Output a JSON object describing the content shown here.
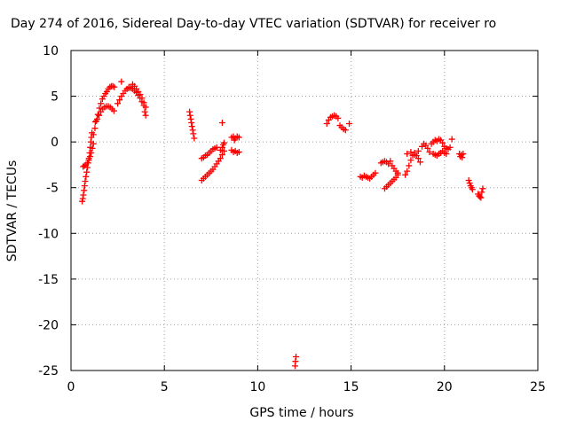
{
  "chart_data": {
    "type": "scatter",
    "title": "Day 274 of 2016, Sidereal Day-to-day VTEC variation (SDTVAR) for receiver ro",
    "xlabel": "GPS time / hours",
    "ylabel": "SDTVAR / TECUs",
    "xlim": [
      0,
      25
    ],
    "ylim": [
      -25,
      10
    ],
    "xticks": [
      0,
      5,
      10,
      15,
      20,
      25
    ],
    "yticks": [
      10,
      5,
      0,
      -5,
      -10,
      -15,
      -20,
      -25
    ],
    "grid": true,
    "marker": "+",
    "color": "#ff0000",
    "series": [
      {
        "name": "SDTVAR",
        "points": [
          [
            0.6,
            -6.5
          ],
          [
            0.63,
            -6.2
          ],
          [
            0.66,
            -5.8
          ],
          [
            0.7,
            -5.3
          ],
          [
            0.73,
            -4.8
          ],
          [
            0.76,
            -4.3
          ],
          [
            0.8,
            -3.8
          ],
          [
            0.84,
            -3.3
          ],
          [
            0.88,
            -2.8
          ],
          [
            0.92,
            -2.3
          ],
          [
            0.96,
            -1.8
          ],
          [
            1.0,
            -1.2
          ],
          [
            1.03,
            -0.6
          ],
          [
            1.06,
            0.0
          ],
          [
            1.09,
            0.5
          ],
          [
            1.12,
            1.0
          ],
          [
            0.65,
            -2.7
          ],
          [
            0.72,
            -2.6
          ],
          [
            0.8,
            -2.5
          ],
          [
            0.88,
            -2.3
          ],
          [
            0.95,
            -2.0
          ],
          [
            1.02,
            -1.6
          ],
          [
            1.08,
            -1.2
          ],
          [
            1.14,
            -0.7
          ],
          [
            1.2,
            -0.2
          ],
          [
            1.2,
            0.8
          ],
          [
            1.28,
            1.5
          ],
          [
            1.36,
            2.3
          ],
          [
            1.44,
            3.0
          ],
          [
            1.52,
            3.7
          ],
          [
            1.6,
            4.2
          ],
          [
            1.68,
            4.7
          ],
          [
            1.76,
            5.0
          ],
          [
            1.84,
            5.3
          ],
          [
            1.92,
            5.5
          ],
          [
            2.0,
            5.8
          ],
          [
            2.08,
            6.0
          ],
          [
            2.16,
            6.1
          ],
          [
            2.24,
            6.1
          ],
          [
            2.32,
            6.0
          ],
          [
            1.3,
            2.2
          ],
          [
            1.4,
            2.5
          ],
          [
            1.5,
            2.9
          ],
          [
            1.6,
            3.3
          ],
          [
            1.7,
            3.6
          ],
          [
            1.8,
            3.8
          ],
          [
            1.9,
            3.9
          ],
          [
            2.0,
            3.9
          ],
          [
            2.1,
            3.8
          ],
          [
            2.2,
            3.6
          ],
          [
            2.3,
            3.4
          ],
          [
            2.5,
            4.2
          ],
          [
            2.6,
            4.6
          ],
          [
            2.7,
            5.0
          ],
          [
            2.8,
            5.3
          ],
          [
            2.9,
            5.6
          ],
          [
            3.0,
            5.8
          ],
          [
            3.1,
            5.9
          ],
          [
            3.2,
            5.9
          ],
          [
            3.3,
            5.8
          ],
          [
            3.4,
            5.6
          ],
          [
            3.5,
            5.4
          ],
          [
            3.6,
            5.1
          ],
          [
            3.7,
            4.8
          ],
          [
            3.8,
            4.4
          ],
          [
            3.9,
            4.0
          ],
          [
            2.7,
            6.6
          ],
          [
            3.1,
            6.0
          ],
          [
            3.3,
            6.3
          ],
          [
            3.4,
            6.1
          ],
          [
            3.5,
            5.8
          ],
          [
            3.6,
            5.5
          ],
          [
            3.7,
            5.2
          ],
          [
            3.8,
            4.8
          ],
          [
            3.9,
            4.3
          ],
          [
            4.0,
            3.8
          ],
          [
            3.95,
            3.3
          ],
          [
            4.0,
            2.9
          ],
          [
            6.35,
            3.3
          ],
          [
            6.38,
            2.9
          ],
          [
            6.42,
            2.5
          ],
          [
            6.45,
            2.1
          ],
          [
            6.48,
            1.7
          ],
          [
            6.52,
            1.3
          ],
          [
            6.55,
            0.9
          ],
          [
            6.6,
            0.4
          ],
          [
            7.0,
            -4.2
          ],
          [
            7.1,
            -4.0
          ],
          [
            7.2,
            -3.8
          ],
          [
            7.3,
            -3.6
          ],
          [
            7.4,
            -3.4
          ],
          [
            7.5,
            -3.2
          ],
          [
            7.6,
            -3.0
          ],
          [
            7.7,
            -2.7
          ],
          [
            7.8,
            -2.4
          ],
          [
            7.9,
            -2.1
          ],
          [
            8.0,
            -1.8
          ],
          [
            8.1,
            -1.4
          ],
          [
            8.2,
            -1.0
          ],
          [
            7.0,
            -1.8
          ],
          [
            7.1,
            -1.7
          ],
          [
            7.2,
            -1.5
          ],
          [
            7.3,
            -1.4
          ],
          [
            7.4,
            -1.2
          ],
          [
            7.5,
            -1.0
          ],
          [
            7.6,
            -0.8
          ],
          [
            7.7,
            -0.7
          ],
          [
            7.8,
            -0.6
          ],
          [
            8.0,
            -0.9
          ],
          [
            8.1,
            -0.6
          ],
          [
            8.15,
            -0.3
          ],
          [
            8.2,
            -0.1
          ],
          [
            8.1,
            2.1
          ],
          [
            8.6,
            0.5
          ],
          [
            8.7,
            0.6
          ],
          [
            8.8,
            0.4
          ],
          [
            8.9,
            0.6
          ],
          [
            9.0,
            0.5
          ],
          [
            8.6,
            -0.9
          ],
          [
            8.7,
            -1.1
          ],
          [
            8.8,
            -1.0
          ],
          [
            8.9,
            -1.2
          ],
          [
            9.0,
            -1.1
          ],
          [
            8.75,
            0.2
          ],
          [
            12.0,
            -24.5
          ],
          [
            12.02,
            -24.0
          ],
          [
            12.05,
            -23.5
          ],
          [
            13.7,
            2.0
          ],
          [
            13.8,
            2.4
          ],
          [
            13.9,
            2.7
          ],
          [
            14.0,
            2.8
          ],
          [
            14.1,
            2.9
          ],
          [
            14.2,
            2.8
          ],
          [
            14.3,
            2.6
          ],
          [
            14.4,
            1.8
          ],
          [
            14.5,
            1.6
          ],
          [
            14.6,
            1.4
          ],
          [
            14.7,
            1.3
          ],
          [
            14.9,
            2.0
          ],
          [
            15.5,
            -3.8
          ],
          [
            15.6,
            -3.9
          ],
          [
            15.7,
            -3.7
          ],
          [
            15.8,
            -3.8
          ],
          [
            15.9,
            -3.9
          ],
          [
            16.0,
            -4.0
          ],
          [
            16.1,
            -3.8
          ],
          [
            16.2,
            -3.6
          ],
          [
            16.3,
            -3.4
          ],
          [
            16.6,
            -2.3
          ],
          [
            16.7,
            -2.2
          ],
          [
            16.8,
            -2.1
          ],
          [
            16.9,
            -2.2
          ],
          [
            17.0,
            -2.4
          ],
          [
            17.1,
            -2.1
          ],
          [
            17.2,
            -2.6
          ],
          [
            17.3,
            -2.9
          ],
          [
            17.4,
            -3.2
          ],
          [
            17.5,
            -3.4
          ],
          [
            16.8,
            -5.1
          ],
          [
            16.9,
            -4.9
          ],
          [
            17.0,
            -4.7
          ],
          [
            17.1,
            -4.5
          ],
          [
            17.2,
            -4.3
          ],
          [
            17.3,
            -4.1
          ],
          [
            17.4,
            -3.9
          ],
          [
            17.5,
            -3.6
          ],
          [
            17.9,
            -3.6
          ],
          [
            18.0,
            -3.2
          ],
          [
            18.1,
            -2.6
          ],
          [
            18.2,
            -2.0
          ],
          [
            18.3,
            -1.5
          ],
          [
            18.4,
            -1.2
          ],
          [
            18.5,
            -1.5
          ],
          [
            18.6,
            -1.8
          ],
          [
            18.7,
            -2.2
          ],
          [
            18.0,
            -1.3
          ],
          [
            18.2,
            -1.1
          ],
          [
            18.4,
            -1.4
          ],
          [
            18.6,
            -1.0
          ],
          [
            18.8,
            -0.5
          ],
          [
            18.9,
            -0.2
          ],
          [
            19.0,
            -0.4
          ],
          [
            19.1,
            -0.7
          ],
          [
            19.2,
            -1.1
          ],
          [
            19.3,
            -0.2
          ],
          [
            19.4,
            0.0
          ],
          [
            19.5,
            0.2
          ],
          [
            19.6,
            0.1
          ],
          [
            19.7,
            0.3
          ],
          [
            19.8,
            0.2
          ],
          [
            19.9,
            -0.1
          ],
          [
            20.0,
            -0.5
          ],
          [
            20.1,
            -0.7
          ],
          [
            20.2,
            -0.8
          ],
          [
            20.3,
            -0.6
          ],
          [
            20.4,
            0.3
          ],
          [
            19.4,
            -1.3
          ],
          [
            19.5,
            -1.4
          ],
          [
            19.6,
            -1.5
          ],
          [
            19.7,
            -1.3
          ],
          [
            19.8,
            -1.2
          ],
          [
            19.9,
            -1.0
          ],
          [
            20.0,
            -1.2
          ],
          [
            20.1,
            -1.3
          ],
          [
            20.8,
            -1.3
          ],
          [
            20.85,
            -1.6
          ],
          [
            20.9,
            -1.4
          ],
          [
            20.95,
            -1.7
          ],
          [
            21.0,
            -1.3
          ],
          [
            21.3,
            -4.2
          ],
          [
            21.35,
            -4.5
          ],
          [
            21.4,
            -4.8
          ],
          [
            21.45,
            -5.0
          ],
          [
            21.5,
            -5.2
          ],
          [
            21.8,
            -5.7
          ],
          [
            21.85,
            -5.9
          ],
          [
            21.9,
            -6.0
          ],
          [
            21.95,
            -6.1
          ],
          [
            22.0,
            -5.5
          ],
          [
            22.05,
            -5.1
          ]
        ]
      }
    ]
  }
}
